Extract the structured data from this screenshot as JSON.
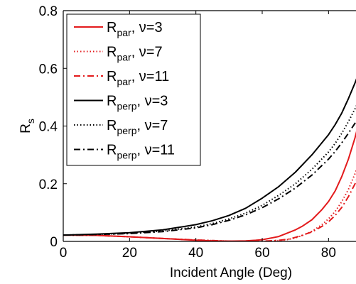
{
  "chart_data": {
    "type": "line",
    "title": "",
    "xlabel": "Incident Angle (Deg)",
    "ylabel": {
      "main": "R",
      "sub": "s"
    },
    "xlim": [
      0,
      90
    ],
    "ylim": [
      0,
      0.8
    ],
    "xticks": [
      0,
      20,
      40,
      60,
      80
    ],
    "yticks": [
      0,
      0.2,
      0.4,
      0.6,
      0.8
    ],
    "xtick_labels": [
      "0",
      "20",
      "40",
      "60",
      "80"
    ],
    "ytick_labels": [
      "0",
      "0.2",
      "0.4",
      "0.6",
      "0.8"
    ],
    "grid": false,
    "legend_position": "top-left",
    "series": [
      {
        "legend": {
          "main": "R",
          "sub": "par",
          "rest": ", ν=3"
        },
        "color": "#e31a1c",
        "dash": "solid",
        "x": [
          0,
          10,
          20,
          30,
          40,
          45,
          50,
          55,
          58,
          60,
          62,
          65,
          70,
          72,
          75,
          78,
          80,
          82,
          84,
          86,
          88,
          90
        ],
        "y": [
          0.022,
          0.021,
          0.016,
          0.01,
          0.004,
          0.002,
          0.001,
          0.002,
          0.004,
          0.006,
          0.01,
          0.017,
          0.04,
          0.052,
          0.075,
          0.11,
          0.138,
          0.175,
          0.225,
          0.285,
          0.36,
          0.45
        ]
      },
      {
        "legend": {
          "main": "R",
          "sub": "par",
          "rest": ", ν=7"
        },
        "color": "#e31a1c",
        "dash": "dotted",
        "x": [
          0,
          10,
          20,
          30,
          40,
          45,
          50,
          55,
          60,
          62,
          65,
          68,
          70,
          72,
          75,
          78,
          80,
          82,
          84,
          86,
          88,
          90
        ],
        "y": [
          0.022,
          0.021,
          0.016,
          0.01,
          0.005,
          0.003,
          0.001,
          0.0,
          0.0,
          0.001,
          0.003,
          0.007,
          0.012,
          0.02,
          0.035,
          0.058,
          0.078,
          0.104,
          0.138,
          0.18,
          0.235,
          0.3
        ]
      },
      {
        "legend": {
          "main": "R",
          "sub": "par",
          "rest": ", ν=11"
        },
        "color": "#e31a1c",
        "dash": "dashdot",
        "x": [
          0,
          10,
          20,
          30,
          40,
          45,
          50,
          55,
          60,
          62,
          65,
          68,
          70,
          72,
          75,
          78,
          80,
          82,
          84,
          86,
          88,
          90
        ],
        "y": [
          0.022,
          0.021,
          0.016,
          0.01,
          0.005,
          0.003,
          0.001,
          0.0,
          0.001,
          0.002,
          0.004,
          0.008,
          0.014,
          0.021,
          0.033,
          0.052,
          0.068,
          0.09,
          0.118,
          0.155,
          0.2,
          0.26
        ]
      },
      {
        "legend": {
          "main": "R",
          "sub": "perp",
          "rest": ", ν=3"
        },
        "color": "#000000",
        "dash": "solid",
        "x": [
          0,
          10,
          20,
          30,
          40,
          45,
          50,
          55,
          60,
          65,
          70,
          75,
          80,
          82,
          84,
          86,
          88,
          90
        ],
        "y": [
          0.022,
          0.025,
          0.03,
          0.04,
          0.058,
          0.072,
          0.09,
          0.115,
          0.15,
          0.19,
          0.24,
          0.3,
          0.37,
          0.405,
          0.445,
          0.495,
          0.55,
          0.61
        ]
      },
      {
        "legend": {
          "main": "R",
          "sub": "perp",
          "rest": ", ν=7"
        },
        "color": "#000000",
        "dash": "dotted",
        "x": [
          0,
          10,
          20,
          30,
          40,
          45,
          50,
          55,
          60,
          65,
          70,
          75,
          80,
          82,
          84,
          86,
          88,
          90
        ],
        "y": [
          0.022,
          0.024,
          0.028,
          0.036,
          0.05,
          0.062,
          0.078,
          0.098,
          0.125,
          0.16,
          0.2,
          0.25,
          0.31,
          0.34,
          0.375,
          0.415,
          0.46,
          0.51
        ]
      },
      {
        "legend": {
          "main": "R",
          "sub": "perp",
          "rest": ", ν=11"
        },
        "color": "#000000",
        "dash": "dashdot",
        "x": [
          0,
          10,
          20,
          30,
          40,
          45,
          50,
          55,
          60,
          65,
          70,
          75,
          80,
          82,
          84,
          86,
          88,
          90
        ],
        "y": [
          0.022,
          0.024,
          0.027,
          0.034,
          0.047,
          0.058,
          0.073,
          0.092,
          0.117,
          0.148,
          0.185,
          0.23,
          0.285,
          0.312,
          0.342,
          0.375,
          0.41,
          0.45
        ]
      }
    ]
  }
}
